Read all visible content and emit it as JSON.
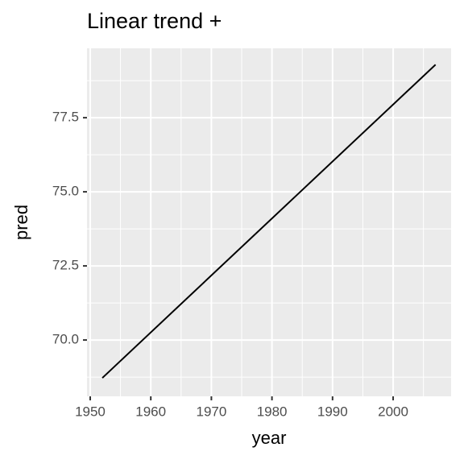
{
  "chart_data": {
    "type": "line",
    "title": "Linear trend +",
    "x_label": "year",
    "y_label": "pred",
    "x": [
      1952,
      2007
    ],
    "series": [
      {
        "name": "pred",
        "color": "#000000",
        "values": [
          68.72,
          79.29
        ]
      }
    ],
    "xlim": [
      1949.47,
      2009.57
    ],
    "xticks": [
      1950,
      1960,
      1970,
      1980,
      1990,
      2000
    ],
    "ylim": [
      68.1,
      79.84
    ],
    "yticks": [
      {
        "value": 70,
        "label": "70.0"
      },
      72.5,
      {
        "value": 75,
        "label": "75.0"
      },
      77.5
    ],
    "grid": true,
    "minor_grid": true
  }
}
